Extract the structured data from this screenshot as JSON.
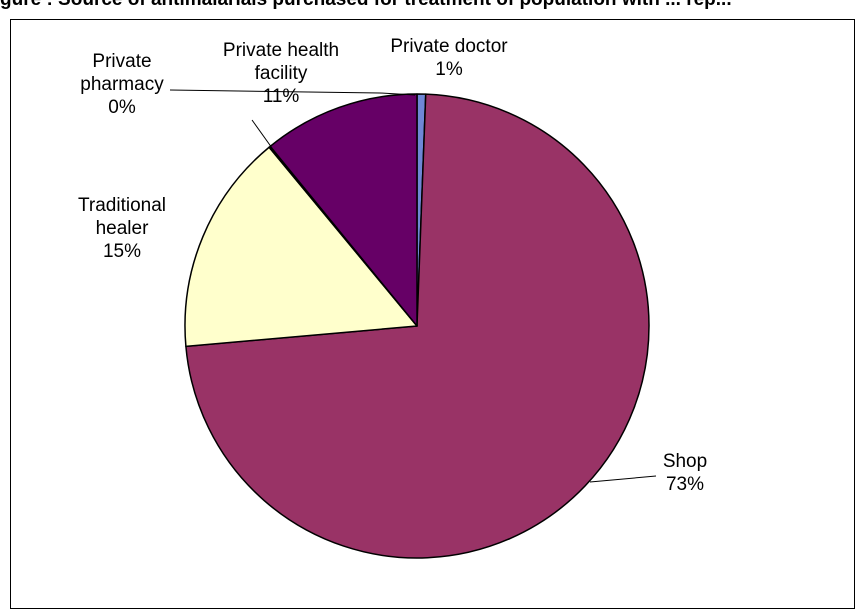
{
  "figure_title": "gure : Source of antimalarials purchased for treatment of population with ... rep...",
  "chart_data": {
    "type": "pie",
    "title": "",
    "slices": [
      {
        "label_lines": [
          "Private doctor",
          "1%"
        ],
        "value": 0.6,
        "color": "#6f87d6"
      },
      {
        "label_lines": [
          "Shop",
          "73%"
        ],
        "value": 73.0,
        "color": "#993366"
      },
      {
        "label_lines": [
          "Traditional",
          "healer",
          "15%"
        ],
        "value": 15.4,
        "color": "#ffffcc"
      },
      {
        "label_lines": [
          "Private",
          "pharmacy",
          "0%"
        ],
        "value": 0.1,
        "color": "#ffffff"
      },
      {
        "label_lines": [
          "Private health",
          "facility",
          "11%"
        ],
        "value": 10.9,
        "color": "#660066"
      }
    ],
    "legend": "none",
    "data_labels": "outside with category name and percentage"
  }
}
